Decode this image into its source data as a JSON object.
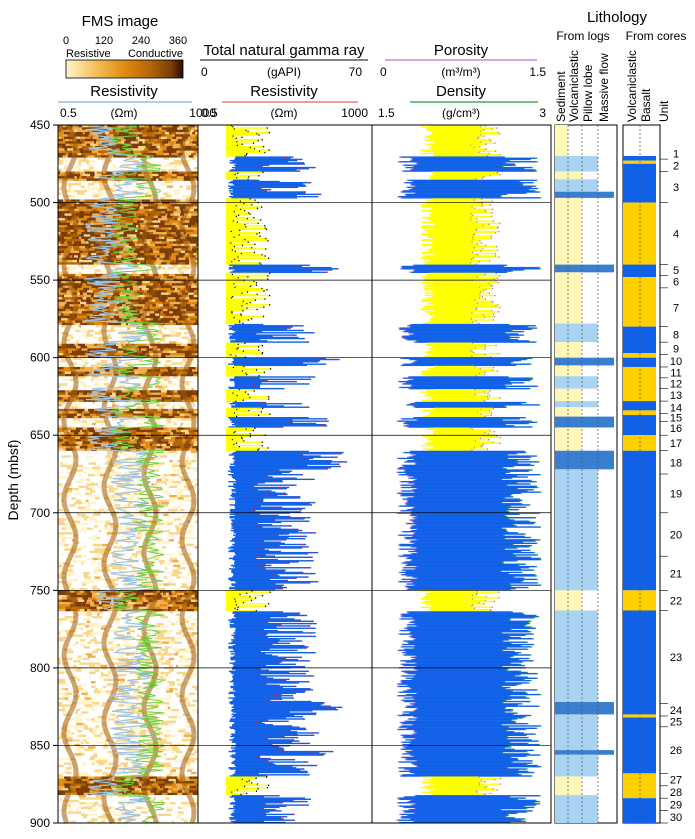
{
  "fms": {
    "title": "FMS image",
    "scale_ticks": [
      "0",
      "120",
      "240",
      "360"
    ],
    "resistive_label": "Resistive",
    "conductive_label": "Conductive",
    "colors": [
      "#fff6d0",
      "#f5c05a",
      "#e08a10",
      "#b56508",
      "#7a3c08",
      "#2a0d00"
    ]
  },
  "tracks": {
    "res1": {
      "title": "Resistivity",
      "min": "0.5",
      "unit": "(Ωm)",
      "max": "1000"
    },
    "gamma": {
      "title": "Total natural gamma ray",
      "min": "0",
      "unit": "(gAPI)",
      "max": "70"
    },
    "res2": {
      "title": "Resistivity",
      "min": "0.5",
      "unit": "(Ωm)",
      "max": "1000"
    },
    "porosity": {
      "title": "Porosity",
      "min": "0",
      "unit": "(m³/m³)",
      "max": "1.5"
    },
    "density": {
      "title": "Density",
      "min": "1.5",
      "unit": "(g/cm³)",
      "max": "3"
    }
  },
  "depth_axis": {
    "label": "Depth (mbsf)",
    "ticks": [
      "450",
      "500",
      "550",
      "600",
      "650",
      "700",
      "750",
      "800",
      "850",
      "900"
    ]
  },
  "lithology": {
    "title": "Lithology",
    "from_logs": "From logs",
    "from_cores": "From cores",
    "log_columns": [
      "Sediment",
      "Volcaniclastic",
      "Pillow lobe",
      "Massive flow"
    ],
    "core_columns": [
      "Volcaniclastic",
      "Basalt"
    ],
    "unit_label": "Unit",
    "colors": {
      "sediment": "#fffbb0",
      "volcaniclastic_log": "#fff7b8",
      "pillow": "#a8d4f2",
      "massive": "#3a7fcf",
      "core_volc": "#ffd000",
      "core_basalt": "#1060e8"
    }
  },
  "chart_data": {
    "type": "well-log",
    "depth_range": [
      450,
      900
    ],
    "units": [
      {
        "n": "1",
        "top": 465,
        "bot": 472
      },
      {
        "n": "2",
        "top": 472,
        "bot": 480
      },
      {
        "n": "3",
        "top": 480,
        "bot": 500
      },
      {
        "n": "4",
        "top": 500,
        "bot": 540
      },
      {
        "n": "5",
        "top": 540,
        "bot": 547
      },
      {
        "n": "6",
        "top": 547,
        "bot": 555
      },
      {
        "n": "7",
        "top": 555,
        "bot": 580
      },
      {
        "n": "8",
        "top": 580,
        "bot": 590
      },
      {
        "n": "9",
        "top": 590,
        "bot": 598
      },
      {
        "n": "10",
        "top": 598,
        "bot": 606
      },
      {
        "n": "11",
        "top": 606,
        "bot": 613
      },
      {
        "n": "12",
        "top": 613,
        "bot": 620
      },
      {
        "n": "13",
        "top": 620,
        "bot": 628
      },
      {
        "n": "14",
        "top": 628,
        "bot": 636
      },
      {
        "n": "15",
        "top": 636,
        "bot": 641
      },
      {
        "n": "16",
        "top": 641,
        "bot": 650
      },
      {
        "n": "17",
        "top": 650,
        "bot": 660
      },
      {
        "n": "18",
        "top": 660,
        "bot": 675
      },
      {
        "n": "19",
        "top": 675,
        "bot": 700
      },
      {
        "n": "20",
        "top": 700,
        "bot": 728
      },
      {
        "n": "21",
        "top": 728,
        "bot": 750
      },
      {
        "n": "22",
        "top": 750,
        "bot": 763
      },
      {
        "n": "23",
        "top": 763,
        "bot": 823
      },
      {
        "n": "24",
        "top": 823,
        "bot": 831
      },
      {
        "n": "25",
        "top": 831,
        "bot": 838
      },
      {
        "n": "26",
        "top": 838,
        "bot": 868
      },
      {
        "n": "27",
        "top": 868,
        "bot": 876
      },
      {
        "n": "28",
        "top": 876,
        "bot": 884
      },
      {
        "n": "29",
        "top": 884,
        "bot": 892
      },
      {
        "n": "30",
        "top": 892,
        "bot": 900
      }
    ],
    "log_lithology": [
      {
        "top": 450,
        "bot": 470,
        "type": "sediment"
      },
      {
        "top": 470,
        "bot": 480,
        "type": "pillow"
      },
      {
        "top": 480,
        "bot": 485,
        "type": "volcaniclastic_log"
      },
      {
        "top": 485,
        "bot": 493,
        "type": "pillow"
      },
      {
        "top": 493,
        "bot": 497,
        "type": "massive"
      },
      {
        "top": 497,
        "bot": 540,
        "type": "volcaniclastic_log"
      },
      {
        "top": 540,
        "bot": 545,
        "type": "massive"
      },
      {
        "top": 545,
        "bot": 578,
        "type": "volcaniclastic_log"
      },
      {
        "top": 578,
        "bot": 590,
        "type": "pillow"
      },
      {
        "top": 590,
        "bot": 600,
        "type": "volcaniclastic_log"
      },
      {
        "top": 600,
        "bot": 605,
        "type": "massive"
      },
      {
        "top": 605,
        "bot": 612,
        "type": "volcaniclastic_log"
      },
      {
        "top": 612,
        "bot": 620,
        "type": "pillow"
      },
      {
        "top": 620,
        "bot": 628,
        "type": "volcaniclastic_log"
      },
      {
        "top": 628,
        "bot": 632,
        "type": "pillow"
      },
      {
        "top": 632,
        "bot": 638,
        "type": "volcaniclastic_log"
      },
      {
        "top": 638,
        "bot": 645,
        "type": "massive"
      },
      {
        "top": 645,
        "bot": 660,
        "type": "volcaniclastic_log"
      },
      {
        "top": 660,
        "bot": 672,
        "type": "massive"
      },
      {
        "top": 672,
        "bot": 750,
        "type": "pillow"
      },
      {
        "top": 750,
        "bot": 763,
        "type": "volcaniclastic_log"
      },
      {
        "top": 763,
        "bot": 822,
        "type": "pillow"
      },
      {
        "top": 822,
        "bot": 830,
        "type": "massive"
      },
      {
        "top": 830,
        "bot": 853,
        "type": "pillow"
      },
      {
        "top": 853,
        "bot": 856,
        "type": "massive"
      },
      {
        "top": 856,
        "bot": 870,
        "type": "pillow"
      },
      {
        "top": 870,
        "bot": 882,
        "type": "volcaniclastic_log"
      },
      {
        "top": 882,
        "bot": 900,
        "type": "pillow"
      }
    ],
    "core_lithology": [
      {
        "top": 470,
        "bot": 473,
        "type": "core_basalt"
      },
      {
        "top": 473,
        "bot": 475,
        "type": "core_volc"
      },
      {
        "top": 475,
        "bot": 500,
        "type": "core_basalt"
      },
      {
        "top": 500,
        "bot": 540,
        "type": "core_volc"
      },
      {
        "top": 540,
        "bot": 548,
        "type": "core_basalt"
      },
      {
        "top": 548,
        "bot": 580,
        "type": "core_volc"
      },
      {
        "top": 580,
        "bot": 597,
        "type": "core_basalt"
      },
      {
        "top": 597,
        "bot": 600,
        "type": "core_volc"
      },
      {
        "top": 600,
        "bot": 606,
        "type": "core_basalt"
      },
      {
        "top": 606,
        "bot": 628,
        "type": "core_volc"
      },
      {
        "top": 628,
        "bot": 634,
        "type": "core_basalt"
      },
      {
        "top": 634,
        "bot": 637,
        "type": "core_volc"
      },
      {
        "top": 637,
        "bot": 650,
        "type": "core_basalt"
      },
      {
        "top": 650,
        "bot": 660,
        "type": "core_volc"
      },
      {
        "top": 660,
        "bot": 750,
        "type": "core_basalt"
      },
      {
        "top": 750,
        "bot": 763,
        "type": "core_volc"
      },
      {
        "top": 763,
        "bot": 830,
        "type": "core_basalt"
      },
      {
        "top": 830,
        "bot": 832,
        "type": "core_volc"
      },
      {
        "top": 832,
        "bot": 868,
        "type": "core_basalt"
      },
      {
        "top": 868,
        "bot": 884,
        "type": "core_volc"
      },
      {
        "top": 884,
        "bot": 900,
        "type": "core_basalt"
      }
    ]
  }
}
